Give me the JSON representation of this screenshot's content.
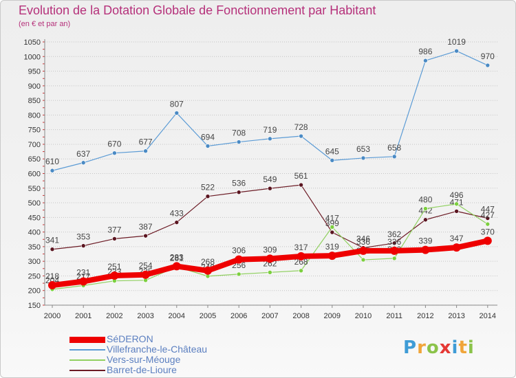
{
  "title": "Evolution de la Dotation Globale de Fonctionnement par Habitant",
  "subtitle": "(en € et par an)",
  "logo": {
    "text": "Proxiti",
    "letters": [
      {
        "ch": "P",
        "color": "#3f9cd6"
      },
      {
        "ch": "r",
        "color": "#f0a53a"
      },
      {
        "ch": "o",
        "color": "#8bc34a"
      },
      {
        "ch": "x",
        "color": "#e53935"
      },
      {
        "ch": "i",
        "color": "#3f9cd6"
      },
      {
        "ch": "t",
        "color": "#f0a53a"
      },
      {
        "ch": "i",
        "color": "#8bc34a"
      }
    ]
  },
  "chart_data": {
    "type": "line",
    "title": "Evolution de la Dotation Globale de Fonctionnement par Habitant",
    "subtitle": "(en € et par an)",
    "xlabel": "",
    "ylabel": "",
    "categories": [
      "2000",
      "2001",
      "2002",
      "2003",
      "2004",
      "2005",
      "2006",
      "2007",
      "2008",
      "2009",
      "2010",
      "2011",
      "2012",
      "2013",
      "2014"
    ],
    "ylim": [
      150,
      1050
    ],
    "yticks": [
      150,
      200,
      250,
      300,
      350,
      400,
      450,
      500,
      550,
      600,
      650,
      700,
      750,
      800,
      850,
      900,
      950,
      1000,
      1050
    ],
    "grid": "horizontal dotted",
    "legend_position": "bottom-left",
    "series": [
      {
        "name": "Villefranche-le-Château",
        "color": "#5b9bd5",
        "marker": "#4a8ac4",
        "width": 1.2,
        "values": [
          610,
          637,
          670,
          677,
          807,
          694,
          708,
          719,
          728,
          645,
          653,
          658,
          986,
          1019,
          970
        ],
        "show_labels": true
      },
      {
        "name": "Barret-de-Lioure",
        "color": "#6b1a24",
        "marker": "#5a1520",
        "width": 1.2,
        "values": [
          341,
          353,
          377,
          387,
          433,
          522,
          536,
          549,
          561,
          399,
          346,
          362,
          442,
          471,
          447
        ],
        "label_text": [
          "341",
          "353",
          "377",
          "387",
          "433",
          "522",
          "536",
          "549",
          "561",
          "399",
          "346",
          "362",
          "442",
          "471",
          "447"
        ],
        "show_labels": true
      },
      {
        "name": "Vers-sur-Méouge",
        "color": "#90d060",
        "marker": "#7ccf3e",
        "width": 1.2,
        "values": [
          204,
          217,
          233,
          235,
          281,
          249,
          256,
          262,
          268,
          417,
          305,
          310,
          480,
          496,
          427
        ],
        "label_text": [
          "204",
          "217",
          "233",
          "235",
          "281",
          "249",
          "256",
          "262",
          "268",
          "417",
          "305",
          "310",
          "480",
          "496",
          "427"
        ],
        "show_labels": true
      },
      {
        "name": "SéDERON",
        "color": "#ee0000",
        "marker": "#ee0000",
        "width": 8,
        "values": [
          218,
          231,
          251,
          254,
          283,
          268,
          306,
          309,
          317,
          319,
          336,
          336,
          339,
          347,
          370
        ],
        "show_labels": true
      }
    ]
  },
  "legend": [
    {
      "label": "SéDERON",
      "color": "#ee0000",
      "thickness": 9
    },
    {
      "label": "Villefranche-le-Château",
      "color": "#5b9bd5",
      "thickness": 2
    },
    {
      "label": "Vers-sur-Méouge",
      "color": "#90d060",
      "thickness": 2
    },
    {
      "label": "Barret-de-Lioure",
      "color": "#6b1a24",
      "thickness": 2
    }
  ]
}
